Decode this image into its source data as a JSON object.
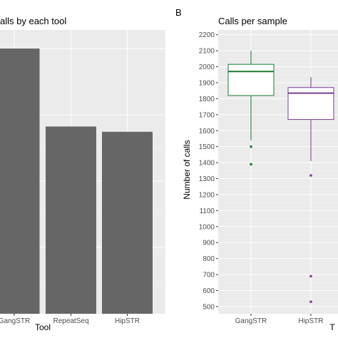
{
  "chart_data": [
    {
      "type": "bar",
      "panel": "A",
      "title": "alls by each tool",
      "xlabel": "Tool",
      "ylabel": "",
      "categories": [
        "GangSTR",
        "RepeatSeq",
        "HipSTR"
      ],
      "values": [
        100,
        70.6,
        68.6
      ],
      "ylim": [
        0,
        107
      ],
      "grid": true,
      "bar_color": "#666666",
      "panel_bg": "#ebebeb"
    },
    {
      "type": "box",
      "panel": "B",
      "panel_label": "B",
      "title": "Calls per sample",
      "xlabel": "T",
      "ylabel": "Number of calls",
      "categories": [
        "GangSTR",
        "HipSTR"
      ],
      "yticks": [
        500,
        600,
        700,
        800,
        900,
        1000,
        1100,
        1200,
        1300,
        1400,
        1500,
        1600,
        1700,
        1800,
        1900,
        2000,
        2100,
        2200
      ],
      "ylim": [
        455,
        2230
      ],
      "grid": true,
      "panel_bg": "#ebebeb",
      "series": [
        {
          "category": "GangSTR",
          "color": "#1b7a2e",
          "min": 1540,
          "q1": 1820,
          "median": 1970,
          "q3": 2015,
          "max": 2100,
          "outliers": [
            1500,
            1390
          ]
        },
        {
          "category": "HipSTR",
          "color": "#7b3d96",
          "min": 1410,
          "q1": 1670,
          "median": 1835,
          "q3": 1870,
          "max": 1935,
          "outliers": [
            1320,
            690,
            530
          ]
        }
      ]
    }
  ]
}
